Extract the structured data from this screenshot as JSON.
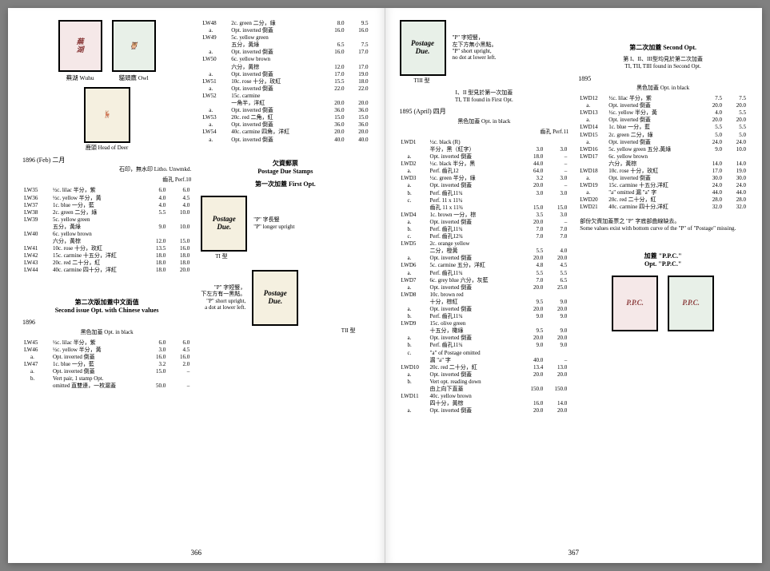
{
  "pageLeft": 366,
  "pageRight": 367,
  "stampCaptions": {
    "wuhu": "蕪湖 Wuhu",
    "owl": "貓頭鷹 Owl",
    "deer": "鹿頭 Head of Deer",
    "t1": "TI 型",
    "t2": "TII 型",
    "t3": "TIII 型"
  },
  "leftCol1": {
    "yearLine": "1896 (Feb) 二月",
    "litho": "石印，無水印 Litho. Unwmkd.",
    "perf": "齒孔 Perf.10",
    "rows": [
      {
        "n": "LW35",
        "d": "½c. lilac 半分，紫",
        "p1": "6.0",
        "p2": "6.0"
      },
      {
        "n": "LW36",
        "d": "½c. yellow 半分，黃",
        "p1": "4.0",
        "p2": "4.5"
      },
      {
        "n": "LW37",
        "d": "1c. blue 一分，藍",
        "p1": "4.0",
        "p2": "4.0"
      },
      {
        "n": "LW38",
        "d": "2c. green 二分，綠",
        "p1": "5.5",
        "p2": "10.0"
      },
      {
        "n": "LW39",
        "d": "5c. yellow green",
        "p1": "",
        "p2": ""
      },
      {
        "n": "",
        "d": "五分，黃綠",
        "p1": "9.0",
        "p2": "10.0"
      },
      {
        "n": "LW40",
        "d": "6c. yellow brown",
        "p1": "",
        "p2": ""
      },
      {
        "n": "",
        "d": "六分，黃棕",
        "p1": "12.0",
        "p2": "15.0"
      },
      {
        "n": "LW41",
        "d": "10c. rose 十分，玫紅",
        "p1": "13.5",
        "p2": "16.0"
      },
      {
        "n": "LW42",
        "d": "15c. carmine 十五分，洋紅",
        "p1": "18.0",
        "p2": "18.0"
      },
      {
        "n": "LW43",
        "d": "20c. red 二十分，紅",
        "p1": "18.0",
        "p2": "18.0"
      },
      {
        "n": "LW44",
        "d": "40c. carmine 四十分，洋紅",
        "p1": "18.0",
        "p2": "20.0"
      }
    ],
    "section2Title": "第二次版加蓋中文面值\nSecond issue Opt. with Chinese values",
    "year2": "1896",
    "optBlack": "黑色加蓋 Opt. in black",
    "rows2": [
      {
        "n": "LW45",
        "d": "½c. lilac 半分，紫",
        "p1": "6.0",
        "p2": "6.0"
      },
      {
        "n": "LW46",
        "d": "½c. yellow 半分，黃",
        "p1": "3.0",
        "p2": "4.5"
      },
      {
        "n": "a.",
        "d": "Opt. inverted 倒蓋",
        "p1": "16.0",
        "p2": "16.0",
        "i": true
      },
      {
        "n": "LW47",
        "d": "1c. blue 一分，藍",
        "p1": "3.2",
        "p2": "2.0"
      },
      {
        "n": "a.",
        "d": "Opt. inverted 倒蓋",
        "p1": "15.0",
        "p2": "–",
        "i": true
      },
      {
        "n": "b.",
        "d": "Vert pair, 1 stamp Opt.",
        "p1": "",
        "p2": "",
        "i": true
      },
      {
        "n": "",
        "d": "omitted 直雙連，一枚漏蓋",
        "p1": "50.0",
        "p2": "–",
        "i": true
      }
    ]
  },
  "leftCol2": {
    "rowsTop": [
      {
        "n": "LW48",
        "d": "2c. green 二分，綠",
        "p1": "8.0",
        "p2": "9.5"
      },
      {
        "n": "a.",
        "d": "Opt. inverted 倒蓋",
        "p1": "16.0",
        "p2": "16.0",
        "i": true
      },
      {
        "n": "LW49",
        "d": "5c. yellow green",
        "p1": "",
        "p2": ""
      },
      {
        "n": "",
        "d": "五分，黃綠",
        "p1": "6.5",
        "p2": "7.5"
      },
      {
        "n": "a.",
        "d": "Opt. inverted 倒蓋",
        "p1": "16.0",
        "p2": "17.0",
        "i": true
      },
      {
        "n": "LW50",
        "d": "6c. yellow brown",
        "p1": "",
        "p2": ""
      },
      {
        "n": "",
        "d": "六分，黃棕",
        "p1": "12.0",
        "p2": "17.0"
      },
      {
        "n": "a.",
        "d": "Opt. inverted 倒蓋",
        "p1": "17.0",
        "p2": "19.0",
        "i": true
      },
      {
        "n": "LW51",
        "d": "10c. rose 十分，玫紅",
        "p1": "15.5",
        "p2": "18.0"
      },
      {
        "n": "a.",
        "d": "Opt. inverted 倒蓋",
        "p1": "22.0",
        "p2": "22.0",
        "i": true
      },
      {
        "n": "LW52",
        "d": "15c. carmine",
        "p1": "",
        "p2": ""
      },
      {
        "n": "",
        "d": "一角半，洋紅",
        "p1": "20.0",
        "p2": "20.0"
      },
      {
        "n": "a.",
        "d": "Opt. inverted 倒蓋",
        "p1": "36.0",
        "p2": "36.0",
        "i": true
      },
      {
        "n": "LW53",
        "d": "20c. red 二角，紅",
        "p1": "15.0",
        "p2": "15.0"
      },
      {
        "n": "a.",
        "d": "Opt. inverted 倒蓋",
        "p1": "36.0",
        "p2": "36.0",
        "i": true
      },
      {
        "n": "LW54",
        "d": "40c. carmine 四角，洋紅",
        "p1": "20.0",
        "p2": "20.0"
      },
      {
        "n": "a.",
        "d": "Opt. inverted 倒蓋",
        "p1": "40.0",
        "p2": "40.0",
        "i": true
      }
    ],
    "dueTitle": "欠資郵票\nPostage Due Stamps",
    "firstOpt": "第一次加蓋 First Opt.",
    "t1note": "\"P\" 字長豎\n\"P\" longer upright",
    "t2note": "\"P\" 字短豎，\n下左方有一黑點。\n\"P\" short upright,\na dot at lower left."
  },
  "rightCol1": {
    "t3note": "\"P\" 字短豎，\n左下方無小黑點。\n\"P\" short upright,\nno dot at lower left.",
    "t12line": "I、II 型見於第一次加蓋\nTI, TII found in First Opt.",
    "year": "1895 (April) 四月",
    "optBlack": "黑色加蓋 Opt. in black",
    "perf": "齒孔 Perf.11",
    "rows": [
      {
        "n": "LWD1",
        "d": "½c. black (R)",
        "p1": "",
        "p2": ""
      },
      {
        "n": "",
        "d": "半分，黑（紅字）",
        "p1": "3.0",
        "p2": "3.0"
      },
      {
        "n": "a.",
        "d": "Opt. inverted 倒蓋",
        "p1": "18.0",
        "p2": "–",
        "i": true
      },
      {
        "n": "LWD2",
        "d": "½c. black 半分，黑",
        "p1": "44.0",
        "p2": "–"
      },
      {
        "n": "a.",
        "d": "Perf. 齒孔12",
        "p1": "64.0",
        "p2": "–",
        "i": true
      },
      {
        "n": "LWD3",
        "d": "½c. green 半分，綠",
        "p1": "3.2",
        "p2": "3.0"
      },
      {
        "n": "a.",
        "d": "Opt. inverted 倒蓋",
        "p1": "20.0",
        "p2": "–",
        "i": true
      },
      {
        "n": "b.",
        "d": "Perf. 齒孔11¾",
        "p1": "3.0",
        "p2": "3.0",
        "i": true
      },
      {
        "n": "c.",
        "d": "Perf. 11 x 11¾",
        "p1": "",
        "p2": "",
        "i": true
      },
      {
        "n": "",
        "d": "齒孔 11 x 11¾",
        "p1": "15.0",
        "p2": "15.0",
        "i": true
      },
      {
        "n": "LWD4",
        "d": "1c. brown 一分，棕",
        "p1": "3.5",
        "p2": "3.0"
      },
      {
        "n": "a.",
        "d": "Opt. inverted 倒蓋",
        "p1": "20.0",
        "p2": "–",
        "i": true
      },
      {
        "n": "b.",
        "d": "Perf. 齒孔11¾",
        "p1": "7.0",
        "p2": "7.0",
        "i": true
      },
      {
        "n": "c.",
        "d": "Perf. 齒孔12¾",
        "p1": "7.0",
        "p2": "7.0",
        "i": true
      },
      {
        "n": "LWD5",
        "d": "2c. orange yellow",
        "p1": "",
        "p2": ""
      },
      {
        "n": "",
        "d": "二分，橙黃",
        "p1": "5.5",
        "p2": "4.0"
      },
      {
        "n": "a.",
        "d": "Opt. inverted 倒蓋",
        "p1": "20.0",
        "p2": "20.0",
        "i": true
      },
      {
        "n": "LWD6",
        "d": "5c. carmine 五分，洋紅",
        "p1": "4.8",
        "p2": "4.5"
      },
      {
        "n": "a.",
        "d": "Perf. 齒孔11¾",
        "p1": "5.5",
        "p2": "5.5",
        "i": true
      },
      {
        "n": "LWD7",
        "d": "6c. grey blue 六分，灰藍",
        "p1": "7.0",
        "p2": "6.5"
      },
      {
        "n": "a.",
        "d": "Opt. inverted 倒蓋",
        "p1": "20.0",
        "p2": "25.0",
        "i": true
      },
      {
        "n": "LWD8",
        "d": "10c. brown red",
        "p1": "",
        "p2": ""
      },
      {
        "n": "",
        "d": "十分，棕紅",
        "p1": "9.5",
        "p2": "9.0"
      },
      {
        "n": "a.",
        "d": "Opt. inverted 倒蓋",
        "p1": "20.0",
        "p2": "20.0",
        "i": true
      },
      {
        "n": "b.",
        "d": "Perf. 齒孔11¾",
        "p1": "9.0",
        "p2": "9.0",
        "i": true
      },
      {
        "n": "LWD9",
        "d": "15c. olive green",
        "p1": "",
        "p2": ""
      },
      {
        "n": "",
        "d": "十五分，橄綠",
        "p1": "9.5",
        "p2": "9.0"
      },
      {
        "n": "a.",
        "d": "Opt. inverted 倒蓋",
        "p1": "20.0",
        "p2": "20.0",
        "i": true
      },
      {
        "n": "b.",
        "d": "Perf. 齒孔11¾",
        "p1": "9.0",
        "p2": "9.0",
        "i": true
      },
      {
        "n": "c.",
        "d": "\"a\" of Postage omitted",
        "p1": "",
        "p2": "",
        "i": true
      },
      {
        "n": "",
        "d": "漏 \"a\" 字",
        "p1": "40.0",
        "p2": "–",
        "i": true
      },
      {
        "n": "LWD10",
        "d": "20c. red 二十分，紅",
        "p1": "13.4",
        "p2": "13.0"
      },
      {
        "n": "a.",
        "d": "Opt. inverted 倒蓋",
        "p1": "20.0",
        "p2": "20.0",
        "i": true
      },
      {
        "n": "b.",
        "d": "Vert opt. reading down",
        "p1": "",
        "p2": "",
        "i": true
      },
      {
        "n": "",
        "d": "由上向下直蓋",
        "p1": "150.0",
        "p2": "150.0",
        "i": true
      },
      {
        "n": "LWD11",
        "d": "40c. yellow brown",
        "p1": "",
        "p2": ""
      },
      {
        "n": "",
        "d": "四十分，黃棕",
        "p1": "16.0",
        "p2": "14.0"
      },
      {
        "n": "a.",
        "d": "Opt. inverted 倒蓋",
        "p1": "20.0",
        "p2": "20.0",
        "i": true
      }
    ]
  },
  "rightCol2": {
    "secondOpt": "第二次加蓋 Second Opt.",
    "typesLine": "第 I、II、III型均見於第二次加蓋\nTI, TII, TIII found in Second Opt.",
    "year": "1895",
    "optBlack": "黑色加蓋 Opt. in black",
    "rows": [
      {
        "n": "LWD12",
        "d": "½c. lilac 半分，紫",
        "p1": "7.5",
        "p2": "7.5"
      },
      {
        "n": "a.",
        "d": "Opt. inverted 倒蓋",
        "p1": "20.0",
        "p2": "20.0",
        "i": true
      },
      {
        "n": "LWD13",
        "d": "½c. yellow 半分，黃",
        "p1": "4.0",
        "p2": "5.5"
      },
      {
        "n": "a.",
        "d": "Opt. inverted 倒蓋",
        "p1": "20.0",
        "p2": "20.0",
        "i": true
      },
      {
        "n": "LWD14",
        "d": "1c. blue 一分，藍",
        "p1": "5.5",
        "p2": "5.5"
      },
      {
        "n": "LWD15",
        "d": "2c. green 二分，綠",
        "p1": "5.0",
        "p2": "5.0"
      },
      {
        "n": "a.",
        "d": "Opt. inverted 倒蓋",
        "p1": "24.0",
        "p2": "24.0",
        "i": true
      },
      {
        "n": "LWD16",
        "d": "5c. yellow green 五分,黃綠",
        "p1": "9.0",
        "p2": "10.0"
      },
      {
        "n": "LWD17",
        "d": "6c. yellow brown",
        "p1": "",
        "p2": ""
      },
      {
        "n": "",
        "d": "六分，黃棕",
        "p1": "14.0",
        "p2": "14.0"
      },
      {
        "n": "LWD18",
        "d": "10c. rose 十分，玫紅",
        "p1": "17.0",
        "p2": "19.0"
      },
      {
        "n": "a.",
        "d": "Opt. inverted 倒蓋",
        "p1": "30.0",
        "p2": "30.0",
        "i": true
      },
      {
        "n": "LWD19",
        "d": "15c. carmine 十五分,洋紅",
        "p1": "24.0",
        "p2": "24.0"
      },
      {
        "n": "a.",
        "d": "\"a\" omitted 漏 \"a\" 字",
        "p1": "44.0",
        "p2": "44.0",
        "i": true
      },
      {
        "n": "LWD20",
        "d": "20c. red 二十分，紅",
        "p1": "28.0",
        "p2": "28.0"
      },
      {
        "n": "LWD21",
        "d": "40c. carmine 四十分,洋紅",
        "p1": "32.0",
        "p2": "32.0"
      }
    ],
    "note": "部份欠資加蓋票之 \"P\" 字底部曲線缺去。\nSome values exist with bottom curve of the \"P\" of \"Postage\" missing.",
    "ppcTitle": "加蓋 \"P.P.C.\"\nOpt. \"P.P.C.\"",
    "ppc": "P.P.C."
  }
}
